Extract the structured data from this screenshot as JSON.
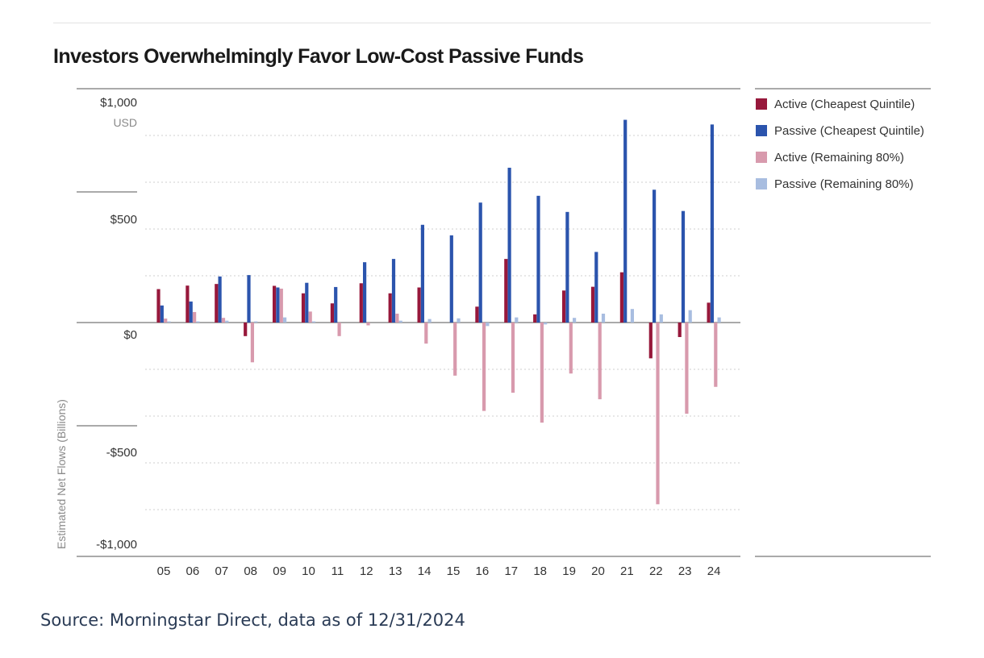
{
  "page": {
    "title": "Investors Overwhelmingly Favor Low-Cost Passive Funds",
    "source": "Source: Morningstar Direct, data as of 12/31/2024"
  },
  "chart_data": {
    "type": "bar",
    "title": "Investors Overwhelmingly Favor Low-Cost Passive Funds",
    "ylabel": "Estimated Net Flows (Billions)",
    "yunit": "USD",
    "ylim": [
      -1000,
      1000
    ],
    "yticks": [
      {
        "value": 1000,
        "label": "$1,000"
      },
      {
        "value": 500,
        "label": "$500"
      },
      {
        "value": 0,
        "label": "$0"
      },
      {
        "value": -500,
        "label": "-$500"
      },
      {
        "value": -1000,
        "label": "-$1,000"
      }
    ],
    "grid": true,
    "legend_position": "right",
    "categories": [
      "05",
      "06",
      "07",
      "08",
      "09",
      "10",
      "11",
      "12",
      "13",
      "14",
      "15",
      "16",
      "17",
      "18",
      "19",
      "20",
      "21",
      "22",
      "23",
      "24"
    ],
    "series": [
      {
        "name": "Active (Cheapest Quintile)",
        "color": "#97183b",
        "values": [
          143,
          158,
          165,
          -58,
          157,
          125,
          82,
          168,
          125,
          150,
          0,
          68,
          272,
          35,
          137,
          153,
          215,
          -153,
          -62,
          85
        ]
      },
      {
        "name": "Passive (Cheapest Quintile)",
        "color": "#2b54ad",
        "values": [
          73,
          90,
          197,
          203,
          150,
          170,
          152,
          258,
          272,
          418,
          373,
          513,
          662,
          542,
          473,
          302,
          867,
          568,
          477,
          847
        ]
      },
      {
        "name": "Active (Remaining 80%)",
        "color": "#d89aad",
        "values": [
          17,
          45,
          20,
          -170,
          145,
          47,
          -58,
          -12,
          38,
          -90,
          -227,
          -378,
          -300,
          -428,
          -218,
          -328,
          0,
          -777,
          -390,
          -275
        ]
      },
      {
        "name": "Passive (Remaining 80%)",
        "color": "#a8bde0",
        "values": [
          5,
          5,
          8,
          5,
          22,
          5,
          0,
          0,
          8,
          15,
          18,
          -15,
          22,
          -8,
          20,
          38,
          58,
          35,
          53,
          22
        ]
      }
    ]
  }
}
